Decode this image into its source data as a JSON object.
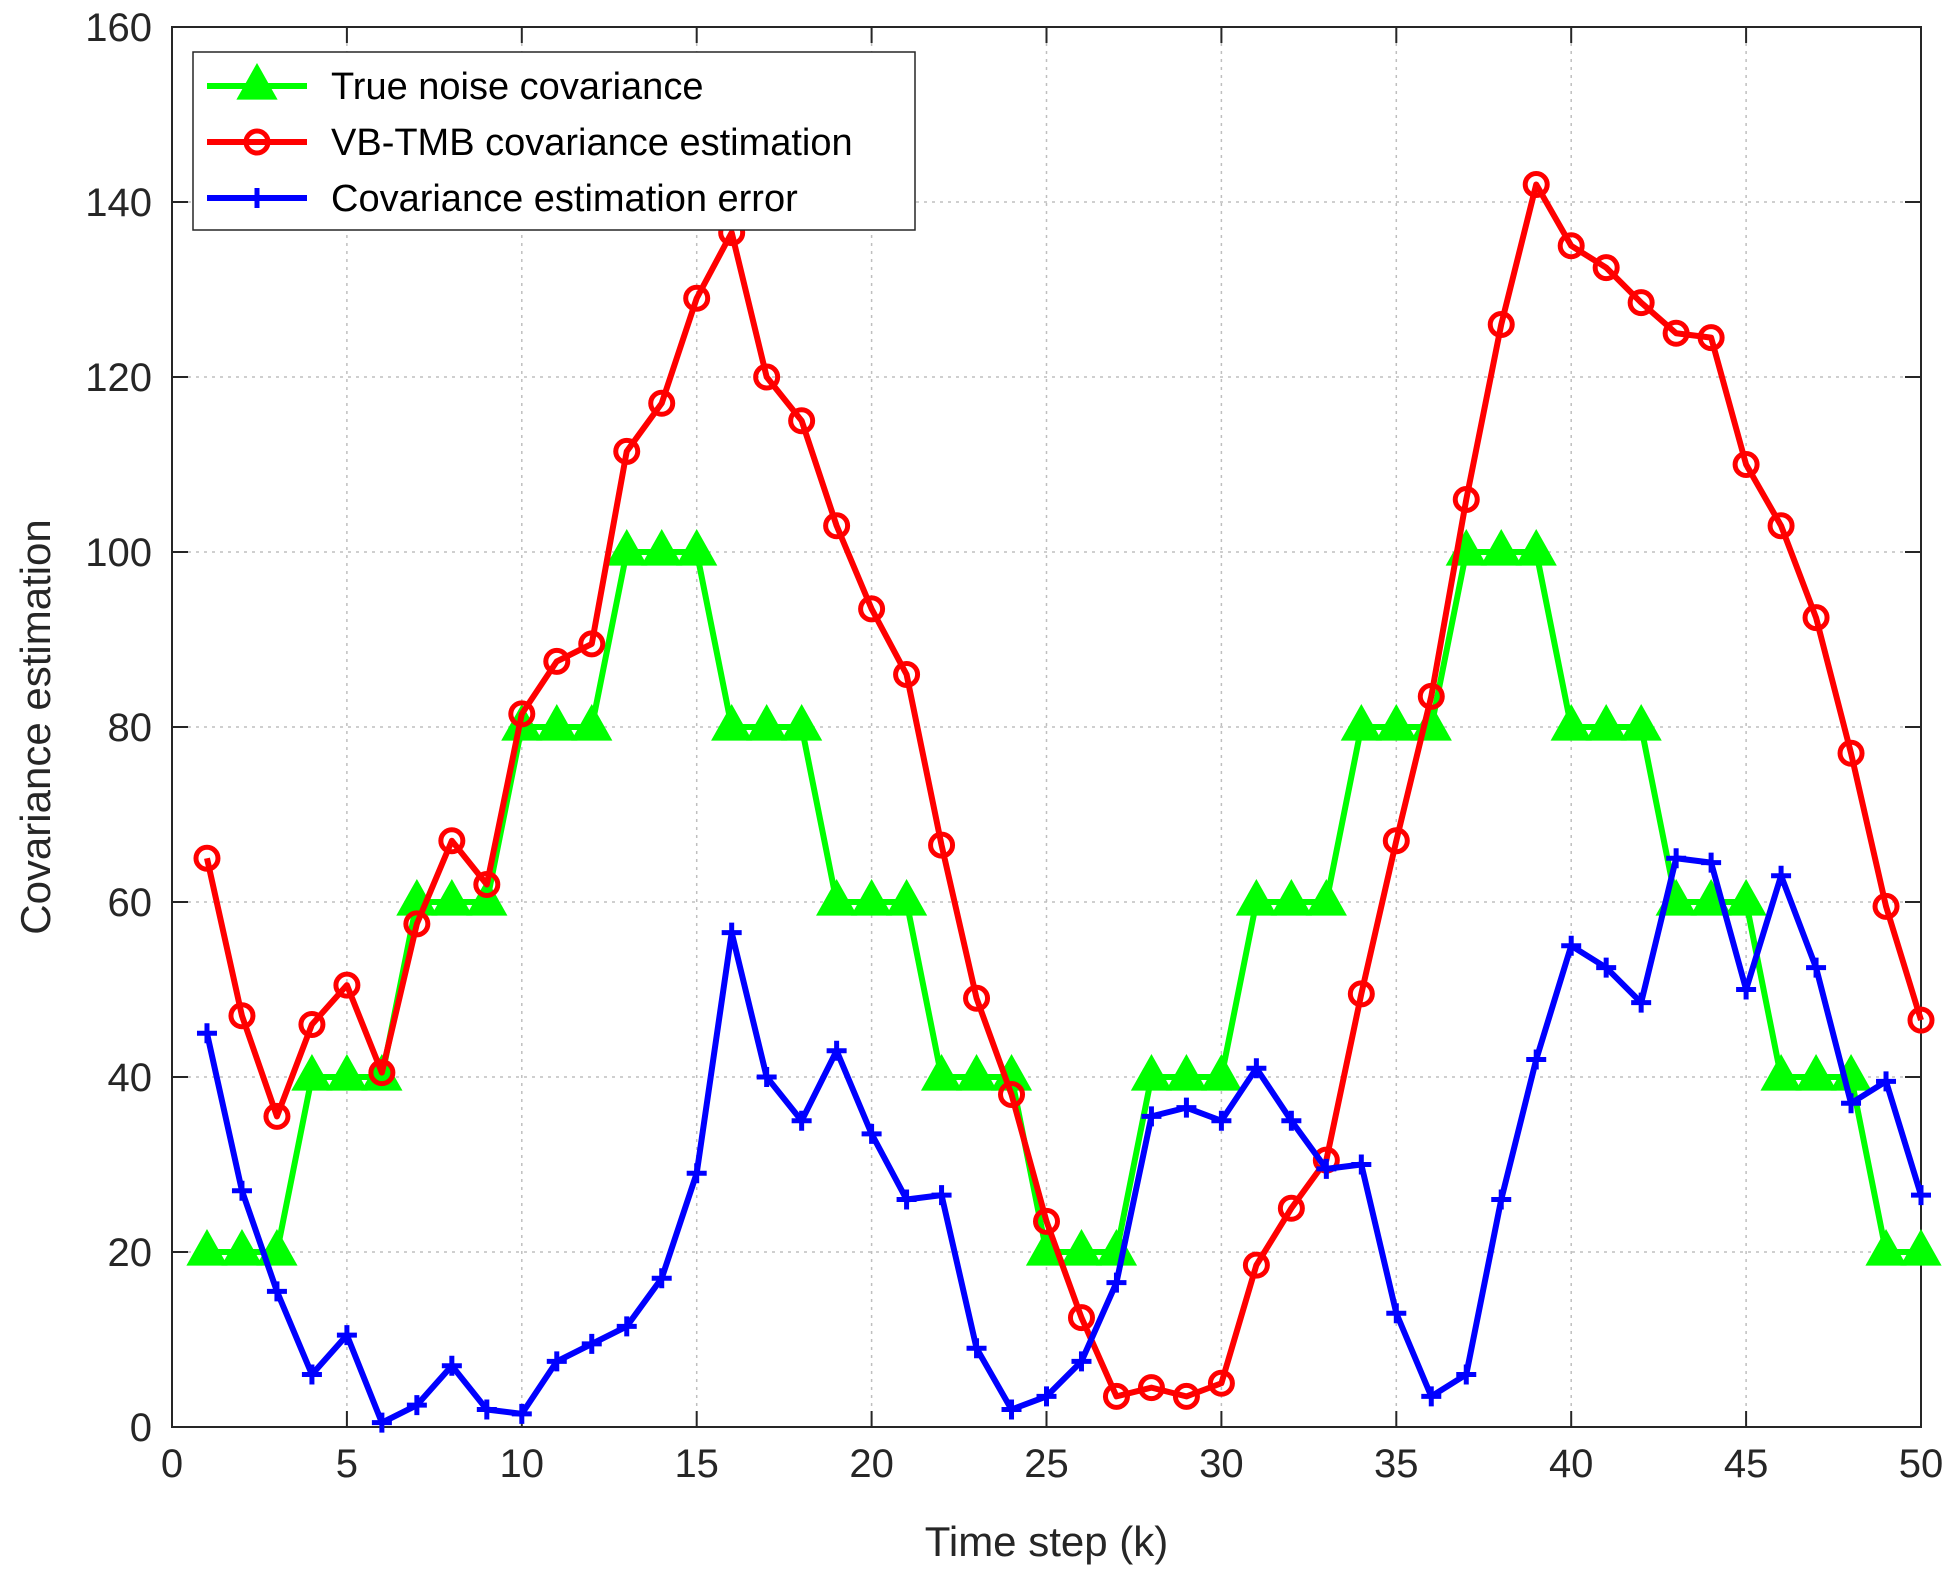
{
  "chart_data": {
    "type": "line",
    "title": "",
    "xlabel": "Time step (k)",
    "ylabel": "Covariance estimation",
    "xlim": [
      0,
      50
    ],
    "ylim": [
      0,
      160
    ],
    "xticks": [
      0,
      5,
      10,
      15,
      20,
      25,
      30,
      35,
      40,
      45,
      50
    ],
    "yticks": [
      0,
      20,
      40,
      60,
      80,
      100,
      120,
      140,
      160
    ],
    "grid": true,
    "legend_position": "top-left",
    "x": [
      1,
      2,
      3,
      4,
      5,
      6,
      7,
      8,
      9,
      10,
      11,
      12,
      13,
      14,
      15,
      16,
      17,
      18,
      19,
      20,
      21,
      22,
      23,
      24,
      25,
      26,
      27,
      28,
      29,
      30,
      31,
      32,
      33,
      34,
      35,
      36,
      37,
      38,
      39,
      40,
      41,
      42,
      43,
      44,
      45,
      46,
      47,
      48,
      49,
      50
    ],
    "series": [
      {
        "name": "True noise covariance",
        "color": "#00ff00",
        "marker": "triangle",
        "values": [
          20,
          20,
          20,
          40,
          40,
          40,
          60,
          60,
          60,
          80,
          80,
          80,
          100,
          100,
          100,
          80,
          80,
          80,
          60,
          60,
          60,
          40,
          40,
          40,
          20,
          20,
          20,
          40,
          40,
          40,
          60,
          60,
          60,
          80,
          80,
          80,
          100,
          100,
          100,
          80,
          80,
          80,
          60,
          60,
          60,
          40,
          40,
          40,
          20,
          20
        ]
      },
      {
        "name": "VB-TMB covariance estimation",
        "color": "#ff0000",
        "marker": "circle",
        "values": [
          65,
          47,
          35.5,
          46,
          50.5,
          40.5,
          57.5,
          67,
          62,
          81.5,
          87.5,
          89.5,
          111.5,
          117,
          129,
          136.5,
          120,
          115,
          103,
          93.5,
          86,
          66.5,
          49,
          38,
          23.5,
          12.5,
          3.5,
          4.5,
          3.5,
          5,
          18.5,
          25,
          30.5,
          49.5,
          67,
          83.5,
          106,
          126,
          142,
          135,
          132.5,
          128.5,
          125,
          124.5,
          110,
          103,
          92.5,
          77,
          59.5,
          46.5
        ]
      },
      {
        "name": "Covariance estimation error",
        "color": "#0000ff",
        "marker": "plus",
        "values": [
          45,
          27,
          15.5,
          6,
          10.5,
          0.5,
          2.5,
          7,
          2,
          1.5,
          7.5,
          9.5,
          11.5,
          17,
          29,
          56.5,
          40,
          35,
          43,
          33.5,
          26,
          26.5,
          9,
          2,
          3.5,
          7.5,
          16.5,
          35.5,
          36.5,
          35,
          41,
          35,
          29.5,
          30,
          13,
          3.5,
          6,
          26,
          42,
          55,
          52.5,
          48.5,
          65,
          64.5,
          50,
          63,
          52.5,
          37,
          39.5,
          26.5
        ]
      }
    ]
  }
}
